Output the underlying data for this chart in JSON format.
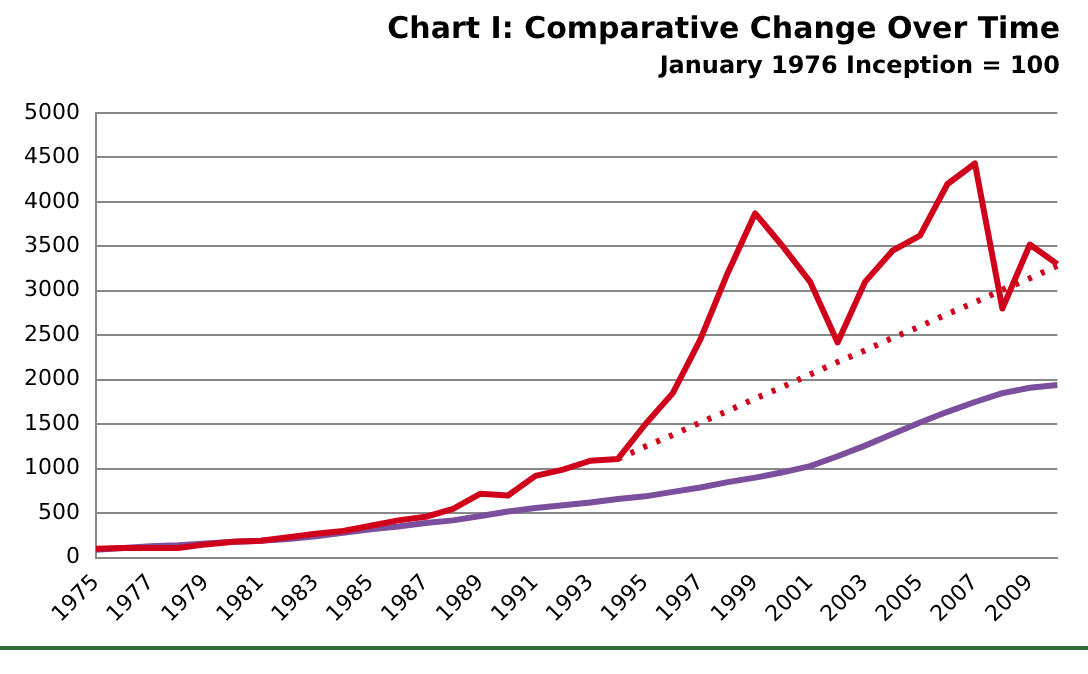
{
  "chart_data": {
    "type": "line",
    "title": "Chart I: Comparative Change Over Time",
    "subtitle": "January 1976 Inception = 100",
    "categories": [
      "1975",
      null,
      "1977",
      null,
      "1979",
      null,
      "1981",
      null,
      "1983",
      null,
      "1985",
      null,
      "1987",
      null,
      "1989",
      null,
      "1991",
      null,
      "1993",
      null,
      "1995",
      null,
      "1997",
      null,
      "1999",
      null,
      "2001",
      null,
      "2003",
      null,
      "2005",
      null,
      "2007",
      null,
      "2009",
      null
    ],
    "series": [
      {
        "color": "#d0021b",
        "line_style": "solid",
        "values": [
          100,
          110,
          110,
          110,
          150,
          180,
          190,
          230,
          270,
          300,
          360,
          420,
          460,
          550,
          720,
          700,
          920,
          990,
          1090,
          1110,
          1500,
          1850,
          2450,
          3200,
          3870,
          3500,
          3100,
          2420,
          3100,
          3450,
          3620,
          4200,
          4430,
          2800,
          3520,
          3300
        ]
      },
      {
        "color": "#d0021b",
        "line_style": "dotted",
        "values": [
          null,
          null,
          null,
          null,
          null,
          null,
          null,
          null,
          null,
          null,
          null,
          null,
          null,
          null,
          null,
          null,
          null,
          null,
          null,
          1110,
          1250,
          1380,
          1520,
          1650,
          1790,
          1920,
          2060,
          2200,
          2330,
          2470,
          2600,
          2740,
          2870,
          3010,
          3140,
          3280
        ]
      },
      {
        "color": "#7b4f9d",
        "line_style": "solid",
        "values": [
          90,
          110,
          130,
          140,
          160,
          180,
          190,
          210,
          240,
          280,
          320,
          350,
          390,
          420,
          470,
          520,
          560,
          590,
          620,
          660,
          690,
          740,
          790,
          850,
          900,
          960,
          1030,
          1140,
          1260,
          1390,
          1520,
          1640,
          1750,
          1850,
          1910,
          1940
        ]
      }
    ],
    "ylim": [
      0,
      5000
    ],
    "yticks": [
      0,
      500,
      1000,
      1500,
      2000,
      2500,
      3000,
      3500,
      4000,
      4500,
      5000
    ],
    "grid": "y",
    "legend": false,
    "marker": "none"
  }
}
